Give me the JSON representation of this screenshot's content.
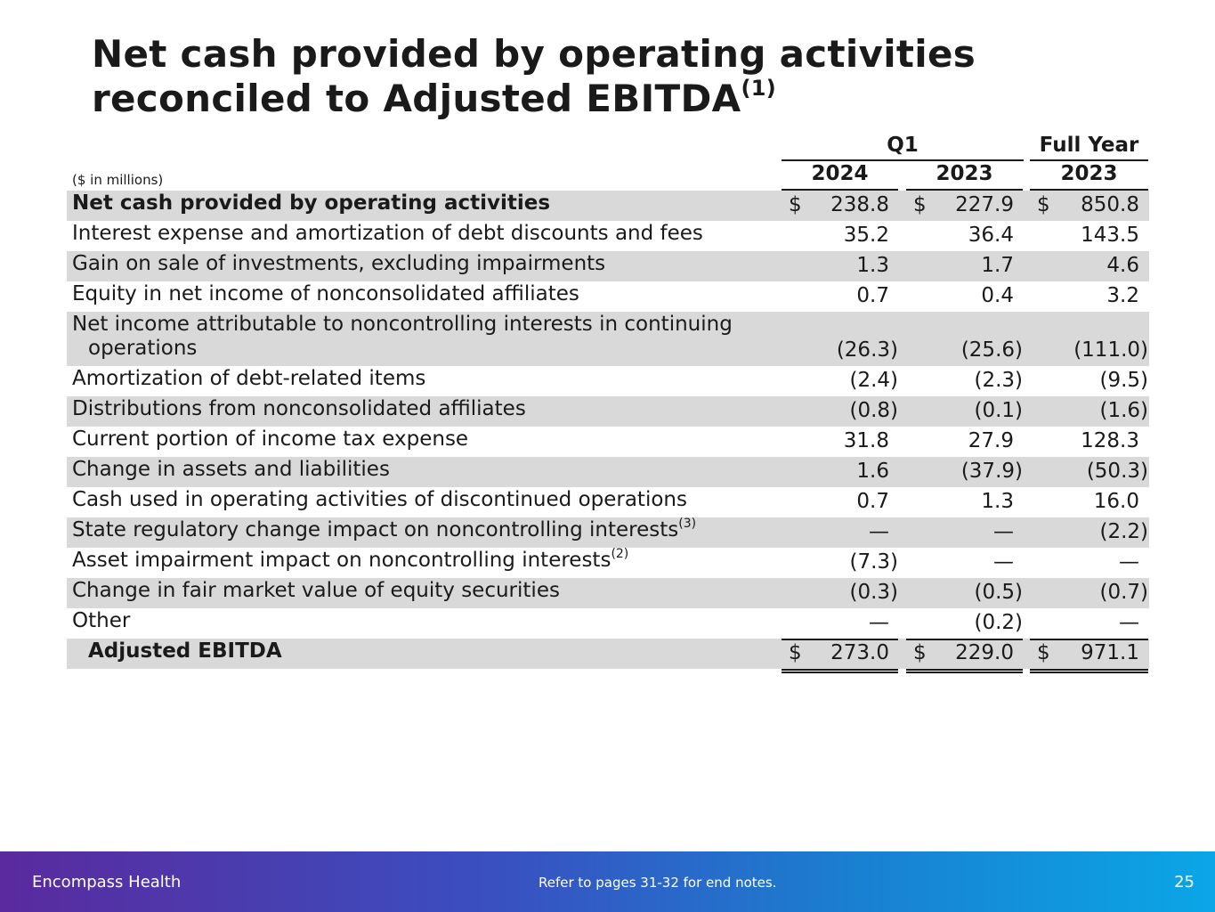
{
  "title": {
    "text": "Net cash provided by operating activities reconciled to Adjusted EBITDA",
    "footnote": "(1)"
  },
  "table": {
    "units": "($ in millions)",
    "group_q1": "Q1",
    "group_fy": "Full Year",
    "year_1": "2024",
    "year_2": "2023",
    "year_3": "2023",
    "rows": [
      {
        "label": "Net cash provided by operating activities",
        "v1": "238.8",
        "v2": "227.9",
        "v3": "850.8"
      },
      {
        "label": "Interest expense and amortization of debt discounts and fees",
        "v1": "35.2",
        "v2": "36.4",
        "v3": "143.5"
      },
      {
        "label": "Gain on sale of investments, excluding impairments",
        "v1": "1.3",
        "v2": "1.7",
        "v3": "4.6"
      },
      {
        "label": "Equity in net income of nonconsolidated affiliates",
        "v1": "0.7",
        "v2": "0.4",
        "v3": "3.2"
      },
      {
        "label_line1": "Net income attributable to noncontrolling interests in continuing",
        "label_line2": "operations",
        "v1": "(26.3)",
        "v2": "(25.6)",
        "v3": "(111.0)"
      },
      {
        "label": "Amortization of debt-related items",
        "v1": "(2.4)",
        "v2": "(2.3)",
        "v3": "(9.5)"
      },
      {
        "label": "Distributions from nonconsolidated affiliates",
        "v1": "(0.8)",
        "v2": "(0.1)",
        "v3": "(1.6)"
      },
      {
        "label": "Current portion of income tax expense",
        "v1": "31.8",
        "v2": "27.9",
        "v3": "128.3"
      },
      {
        "label": "Change in assets and liabilities",
        "v1": "1.6",
        "v2": "(37.9)",
        "v3": "(50.3)"
      },
      {
        "label": "Cash used in operating activities of discontinued operations",
        "v1": "0.7",
        "v2": "1.3",
        "v3": "16.0"
      },
      {
        "label": "State regulatory change impact on noncontrolling interests",
        "sup": "(3)",
        "v1": "—",
        "v2": "—",
        "v3": "(2.2)"
      },
      {
        "label": "Asset impairment impact on noncontrolling interests",
        "sup": "(2)",
        "v1": "(7.3)",
        "v2": "—",
        "v3": "—"
      },
      {
        "label": "Change in fair market value of equity securities",
        "v1": "(0.3)",
        "v2": "(0.5)",
        "v3": "(0.7)"
      },
      {
        "label": "Other",
        "v1": "—",
        "v2": "(0.2)",
        "v3": "—"
      },
      {
        "label": "Adjusted EBITDA",
        "v1": "273.0",
        "v2": "229.0",
        "v3": "971.1"
      }
    ],
    "currency": "$"
  },
  "footer": {
    "brand": "Encompass Health",
    "note": "Refer to pages 31-32 for end notes.",
    "page_number": "25"
  },
  "colors": {
    "row_shade": "#d9d9d9",
    "footer_gradient_start": "#5a2a9e",
    "footer_gradient_end": "#0aa6e6"
  }
}
